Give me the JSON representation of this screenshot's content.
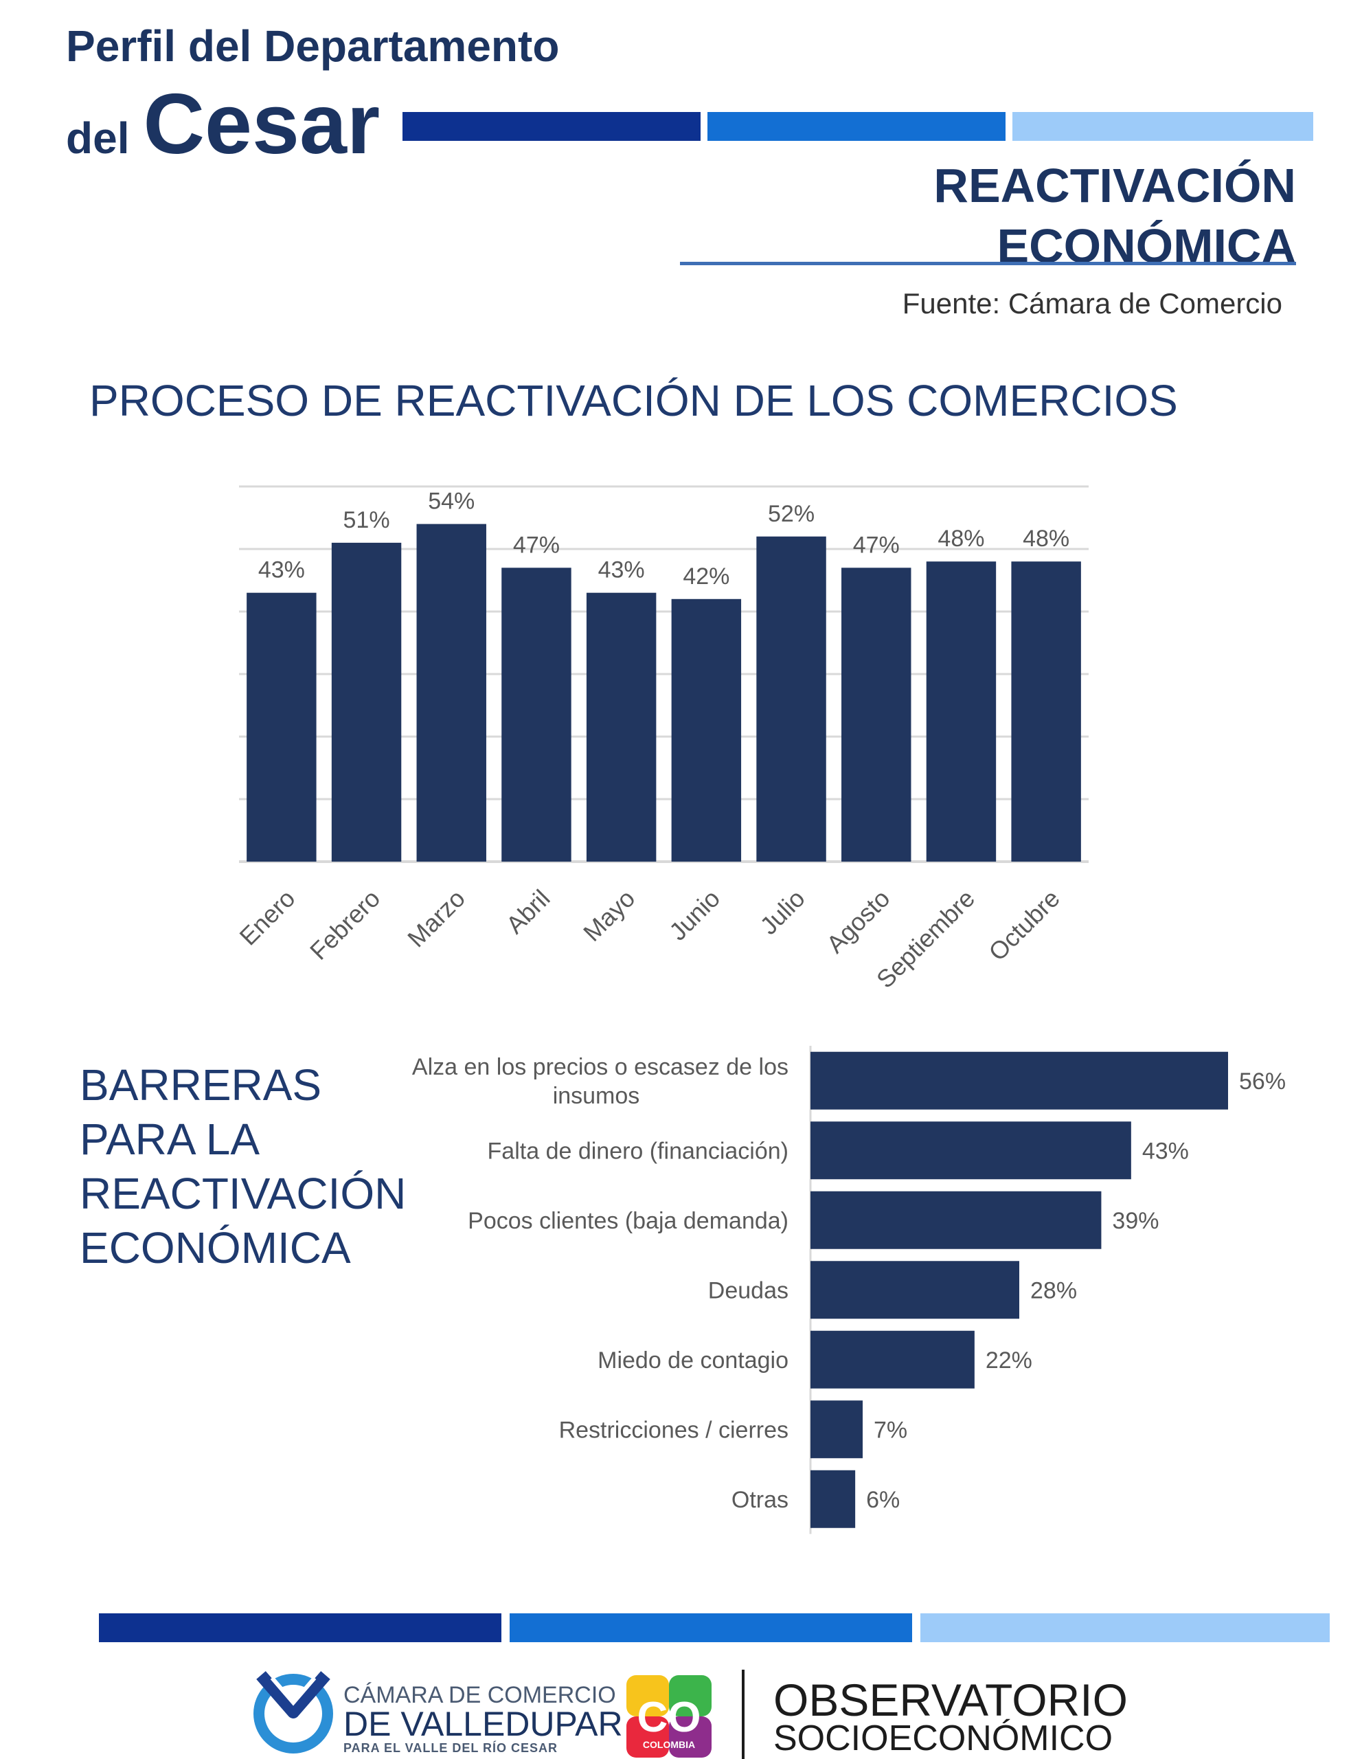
{
  "header": {
    "line1": "Perfil del Departamento",
    "line2_small": "del",
    "line2_big": "Cesar"
  },
  "section": {
    "title_line1": "REACTIVACIÓN",
    "title_line2": "ECONÓMICA",
    "source": "Fuente: Cámara de Comercio"
  },
  "colors": {
    "bar": "#21365f",
    "stripe_dark": "#0d3190",
    "stripe_mid": "#136fd3",
    "stripe_light": "#9dcbf9",
    "grid": "#d9d9d9",
    "label": "#595959"
  },
  "chart_data": [
    {
      "type": "bar",
      "title": "PROCESO DE REACTIVACIÓN DE LOS COMERCIOS",
      "categories": [
        "Enero",
        "Febrero",
        "Marzo",
        "Abril",
        "Mayo",
        "Junio",
        "Julio",
        "Agosto",
        "Septiembre",
        "Octubre"
      ],
      "values": [
        43,
        51,
        54,
        47,
        43,
        42,
        52,
        47,
        48,
        48
      ],
      "value_labels": [
        "43%",
        "51%",
        "54%",
        "47%",
        "43%",
        "42%",
        "52%",
        "47%",
        "48%",
        "48%"
      ],
      "ylim": [
        0,
        60
      ],
      "grid": true,
      "orientation": "vertical"
    },
    {
      "type": "bar",
      "title_lines": [
        "BARRERAS",
        "PARA LA",
        "REACTIVACIÓN",
        "ECONÓMICA"
      ],
      "categories": [
        [
          "Alza en los precios o escasez de los",
          "insumos"
        ],
        [
          "Falta de dinero (financiación)"
        ],
        [
          "Pocos clientes (baja demanda)"
        ],
        [
          "Deudas"
        ],
        [
          "Miedo de contagio"
        ],
        [
          "Restricciones / cierres"
        ],
        [
          "Otras"
        ]
      ],
      "values": [
        56,
        43,
        39,
        28,
        22,
        7,
        6
      ],
      "value_labels": [
        "56%",
        "43%",
        "39%",
        "28%",
        "22%",
        "7%",
        "6%"
      ],
      "xlim": [
        0,
        60
      ],
      "grid": false,
      "orientation": "horizontal"
    }
  ],
  "footer": {
    "camara_line1": "CÁMARA DE COMERCIO",
    "camara_line2": "DE VALLEDUPAR",
    "camara_line3": "PARA EL VALLE DEL RÍO CESAR",
    "co_mark": "CO",
    "co_word": "COLOMBIA",
    "obs_line1": "OBSERVATORIO",
    "obs_line2": "SOCIOECONÓMICO"
  }
}
